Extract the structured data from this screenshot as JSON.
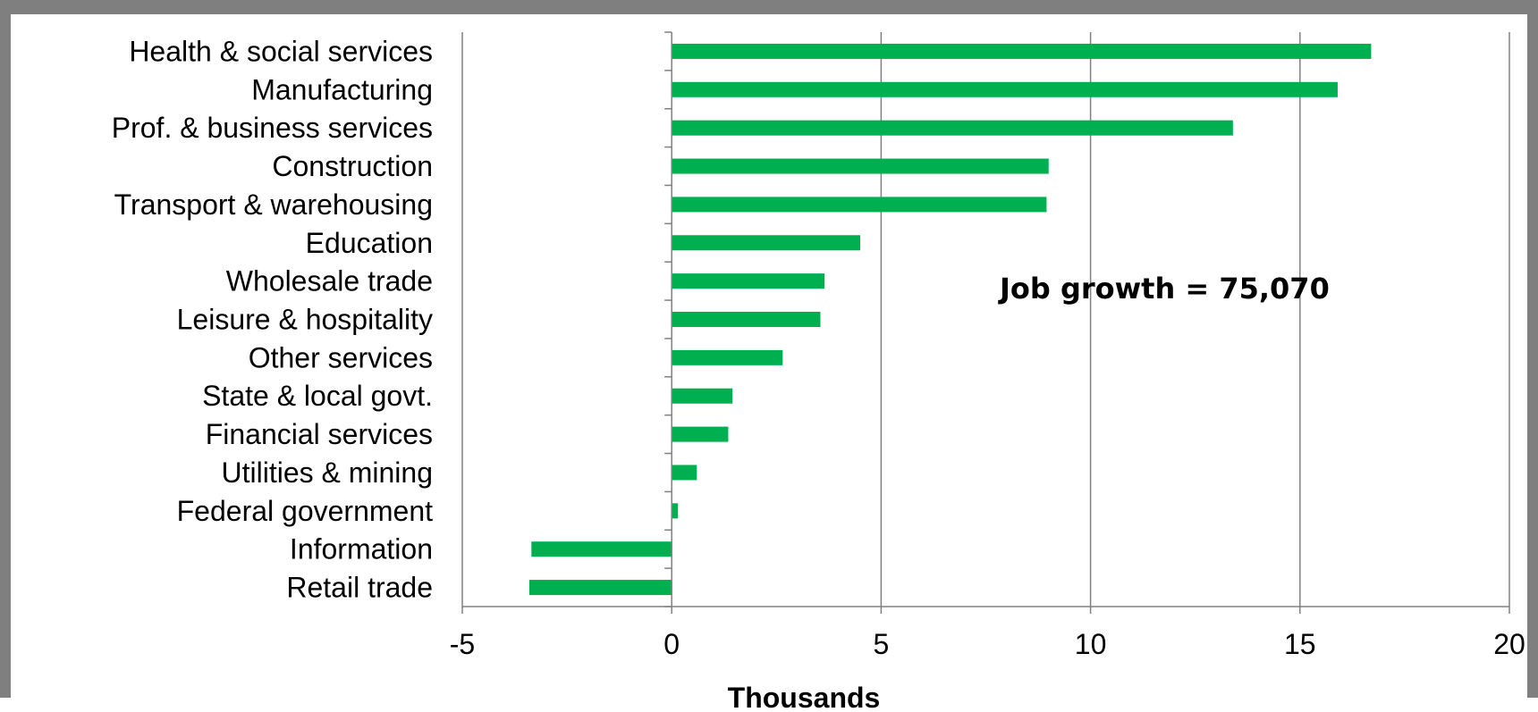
{
  "chart_data": {
    "type": "bar",
    "orientation": "horizontal",
    "categories": [
      "Health & social services",
      "Manufacturing",
      "Prof. & business services",
      "Construction",
      "Transport & warehousing",
      "Education",
      "Wholesale trade",
      "Leisure & hospitality",
      "Other services",
      "State & local govt.",
      "Financial services",
      "Utilities & mining",
      "Federal government",
      "Information",
      "Retail trade"
    ],
    "values": [
      16.7,
      15.9,
      13.4,
      9.0,
      8.95,
      4.5,
      3.65,
      3.55,
      2.65,
      1.45,
      1.35,
      0.6,
      0.15,
      -3.35,
      -3.4
    ],
    "xlim": [
      -5,
      20
    ],
    "xticks": [
      -5,
      0,
      5,
      10,
      15,
      20
    ],
    "xlabel": "Thousands",
    "ylabel": "",
    "grid": "vertical",
    "legend": "none",
    "annotation": "Job growth = 75,070",
    "colors": {
      "bar": "#00b050",
      "grid": "#808080",
      "frame": "#7f7f7f"
    }
  }
}
